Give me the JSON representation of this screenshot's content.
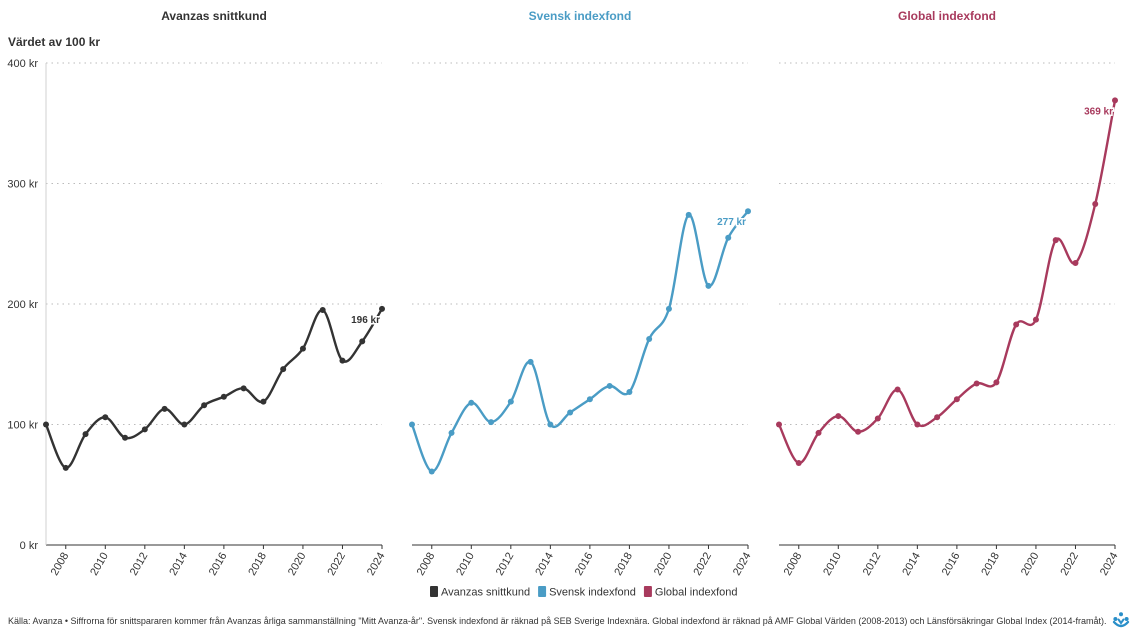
{
  "source_text": "Källa: Avanza • Siffrorna för snittspararen kommer från Avanzas årliga sammanställning \"Mitt Avanza-år\". Svensk indexfond är räknad på SEB Sverige Indexnära. Global indexfond är räknad på AMF Global Världen (2008-2013) och Länsförsäkringar Global Index (2014-framåt).",
  "logo_icon": "avanza-logo-icon",
  "chart_data": {
    "type": "line",
    "ylabel": "Värdet av 100 kr",
    "ylim": [
      0,
      400
    ],
    "yticks": [
      0,
      100,
      200,
      300,
      400
    ],
    "ytick_labels": [
      "0 kr",
      "100 kr",
      "200 kr",
      "300 kr",
      "400 kr"
    ],
    "xlim": [
      2007,
      2024
    ],
    "xticks": [
      2008,
      2010,
      2012,
      2014,
      2016,
      2018,
      2020,
      2022,
      2024
    ],
    "xtick_labels": [
      "2008",
      "2010",
      "2012",
      "2014",
      "2016",
      "2018",
      "2020",
      "2022",
      "2024"
    ],
    "grid": true,
    "legend_position": "bottom",
    "x": [
      2007,
      2008,
      2009,
      2010,
      2011,
      2012,
      2013,
      2014,
      2015,
      2016,
      2017,
      2018,
      2019,
      2020,
      2021,
      2022,
      2023,
      2024
    ],
    "series": [
      {
        "name": "Avanzas snittkund",
        "title": "Avanzas snittkund",
        "color": "#333333",
        "values": [
          100,
          64,
          92,
          106,
          89,
          96,
          113,
          100,
          116,
          123,
          130,
          119,
          146,
          163,
          195,
          153,
          169,
          196
        ],
        "end_label": "196 kr"
      },
      {
        "name": "Svensk indexfond",
        "title": "Svensk indexfond",
        "color": "#4a9cc5",
        "values": [
          100,
          61,
          93,
          118,
          102,
          119,
          152,
          100,
          110,
          121,
          132,
          127,
          171,
          196,
          274,
          215,
          255,
          277
        ],
        "end_label": "277 kr"
      },
      {
        "name": "Global indexfond",
        "title": "Global indexfond",
        "color": "#a83a5d",
        "values": [
          100,
          68,
          93,
          107,
          94,
          105,
          129,
          100,
          106,
          121,
          134,
          135,
          183,
          187,
          253,
          234,
          283,
          369
        ],
        "end_label": "369 kr"
      }
    ]
  }
}
